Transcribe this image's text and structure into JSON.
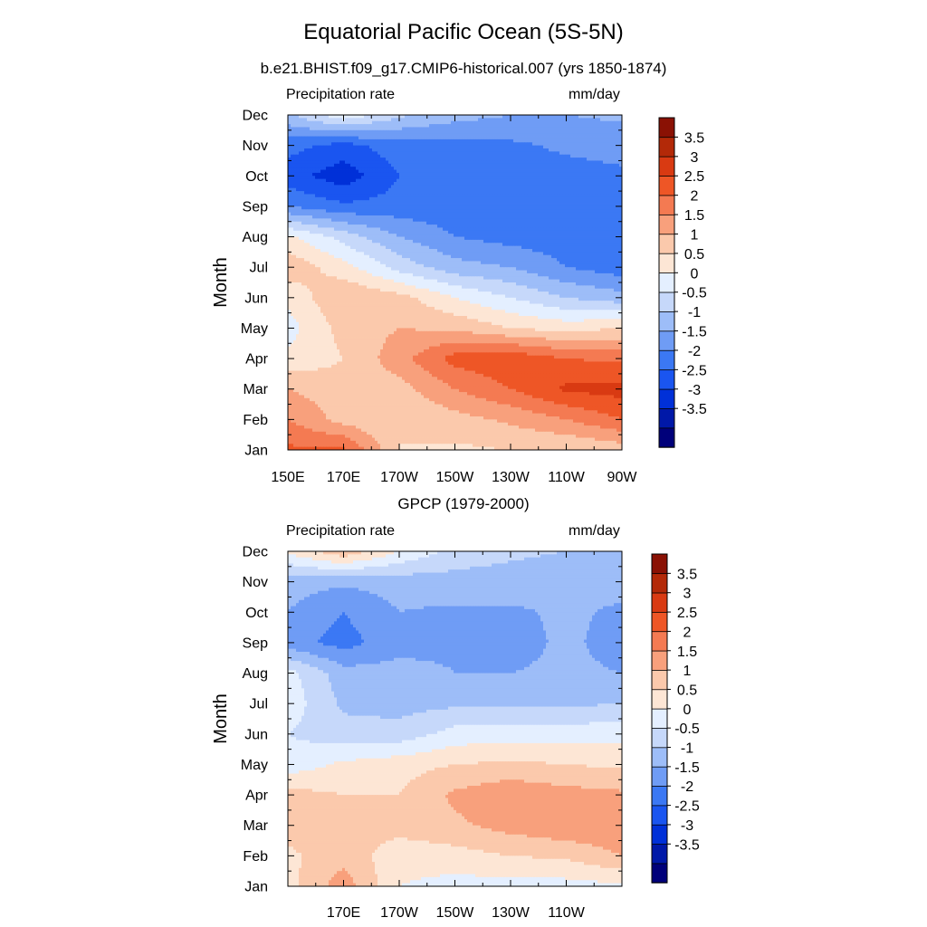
{
  "title": "Equatorial Pacific Ocean (5S-5N)",
  "colors": [
    "#00007a",
    "#0018a8",
    "#0030d8",
    "#1a55f0",
    "#3b78f4",
    "#6f9cf5",
    "#9dbdf8",
    "#c6d8fa",
    "#e4efff",
    "#fde6d5",
    "#fbc9ac",
    "#f8a07c",
    "#f47a52",
    "#ee5626",
    "#d93a12",
    "#b32908",
    "#8a1104"
  ],
  "chart_data": [
    {
      "type": "contour",
      "title": "b.e21.BHIST.f09_g17.CMIP6-historical.007 (yrs 1850-1874)",
      "left_string": "Precipitation rate",
      "right_string": "mm/day",
      "ylabel": "Month",
      "x_ticks": [
        "150E",
        "170E",
        "170W",
        "150W",
        "130W",
        "110W",
        "90W"
      ],
      "x_tick_values": [
        150,
        170,
        190,
        210,
        230,
        250,
        270
      ],
      "xlim": [
        150,
        270
      ],
      "y_ticks": [
        "Jan",
        "Feb",
        "Mar",
        "Apr",
        "May",
        "Jun",
        "Jul",
        "Aug",
        "Sep",
        "Oct",
        "Nov",
        "Dec"
      ],
      "levels": [
        -3.5,
        -3,
        -2.5,
        -2,
        -1.5,
        -1,
        -0.5,
        0,
        0.5,
        1,
        1.5,
        2,
        2.5,
        3,
        3.5
      ],
      "colorbar_labels": [
        "3.5",
        "3",
        "2.5",
        "2",
        "1.5",
        "1",
        "0.5",
        "0",
        "-0.5",
        "-1",
        "-1.5",
        "-2",
        "-2.5",
        "-3",
        "-3.5"
      ],
      "grid_x": [
        150,
        170,
        190,
        210,
        230,
        250,
        270
      ],
      "grid_months": [
        "Jan",
        "Feb",
        "Mar",
        "Apr",
        "May",
        "Jun",
        "Jul",
        "Aug",
        "Sep",
        "Oct",
        "Nov",
        "Dec"
      ],
      "values": [
        [
          2.6,
          2.6,
          1.0,
          0.9,
          1.0,
          1.0,
          1.2
        ],
        [
          2.0,
          1.3,
          1.0,
          1.3,
          1.6,
          2.0,
          2.5
        ],
        [
          1.5,
          1.2,
          1.3,
          2.0,
          2.5,
          3.1,
          3.2
        ],
        [
          0.6,
          1.0,
          1.8,
          2.7,
          2.9,
          2.5,
          2.4
        ],
        [
          0.3,
          1.2,
          1.5,
          1.4,
          1.0,
          0.8,
          1.0
        ],
        [
          0.6,
          1.5,
          1.2,
          0.5,
          0.0,
          -0.5,
          -0.8
        ],
        [
          1.4,
          0.7,
          -0.2,
          -0.8,
          -1.0,
          -1.5,
          -1.8
        ],
        [
          0.6,
          -0.2,
          -1.0,
          -1.5,
          -1.7,
          -1.8,
          -2.0
        ],
        [
          -1.5,
          -1.9,
          -1.8,
          -1.8,
          -1.8,
          -1.8,
          -1.7
        ],
        [
          -2.3,
          -2.8,
          -2.0,
          -1.8,
          -1.8,
          -1.7,
          -1.6
        ],
        [
          -1.8,
          -2.2,
          -1.7,
          -1.7,
          -1.6,
          -1.4,
          -1.3
        ],
        [
          -0.6,
          0.4,
          -0.4,
          -0.8,
          -1.0,
          -1.0,
          -0.9
        ]
      ]
    },
    {
      "type": "contour",
      "title": "GPCP (1979-2000)",
      "left_string": "Precipitation rate",
      "right_string": "mm/day",
      "ylabel": "Month",
      "x_ticks": [
        "170E",
        "170W",
        "150W",
        "130W",
        "110W"
      ],
      "x_tick_values": [
        170,
        190,
        210,
        230,
        250
      ],
      "xlim": [
        150,
        270
      ],
      "y_ticks": [
        "Jan",
        "Feb",
        "Mar",
        "Apr",
        "May",
        "Jun",
        "Jul",
        "Aug",
        "Sep",
        "Oct",
        "Nov",
        "Dec"
      ],
      "levels": [
        -3.5,
        -3,
        -2.5,
        -2,
        -1.5,
        -1,
        -0.5,
        0,
        0.5,
        1,
        1.5,
        2,
        2.5,
        3,
        3.5
      ],
      "colorbar_labels": [
        "3.5",
        "3",
        "2.5",
        "2",
        "1.5",
        "1",
        "0.5",
        "0",
        "-0.5",
        "-1",
        "-1.5",
        "-2",
        "-2.5",
        "-3",
        "-3.5"
      ],
      "grid_x": [
        150,
        170,
        190,
        210,
        230,
        250,
        270
      ],
      "grid_months": [
        "Jan",
        "Feb",
        "Mar",
        "Apr",
        "May",
        "Jun",
        "Jul",
        "Aug",
        "Sep",
        "Oct",
        "Nov",
        "Dec"
      ],
      "values": [
        [
          0.8,
          1.8,
          0.5,
          0.3,
          0.3,
          0.3,
          0.4
        ],
        [
          0.9,
          1.3,
          0.7,
          0.8,
          1.0,
          1.1,
          1.5
        ],
        [
          1.2,
          1.2,
          1.2,
          1.4,
          1.7,
          1.9,
          1.9
        ],
        [
          1.2,
          1.0,
          1.0,
          1.6,
          1.9,
          1.7,
          1.6
        ],
        [
          0.2,
          0.6,
          0.8,
          1.0,
          1.1,
          1.0,
          0.9
        ],
        [
          0.0,
          -0.3,
          -0.3,
          0.2,
          0.3,
          0.3,
          0.3
        ],
        [
          0.3,
          -0.6,
          -0.7,
          -0.6,
          -0.6,
          -0.6,
          -0.5
        ],
        [
          0.2,
          -0.8,
          -0.8,
          -1.0,
          -1.0,
          -0.9,
          -1.0
        ],
        [
          -1.3,
          -1.7,
          -1.2,
          -1.1,
          -1.2,
          -0.9,
          -1.2
        ],
        [
          -1.0,
          -1.5,
          -1.0,
          -1.1,
          -1.1,
          -0.9,
          -1.1
        ],
        [
          -0.8,
          -0.9,
          -0.8,
          -0.7,
          -0.7,
          -0.8,
          -0.8
        ],
        [
          0.6,
          1.4,
          0.5,
          -0.2,
          -0.4,
          -0.5,
          -0.5
        ]
      ]
    }
  ]
}
